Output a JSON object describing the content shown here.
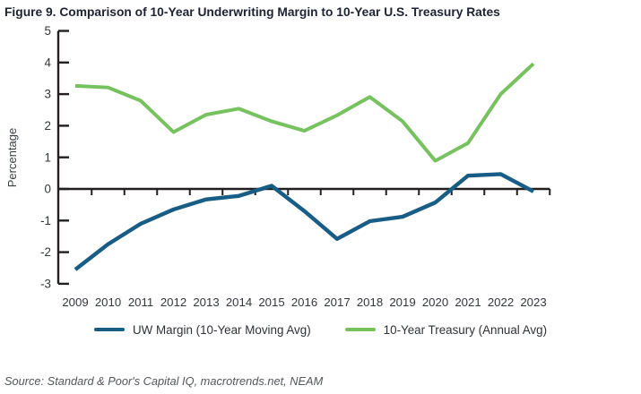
{
  "header": {},
  "chart_data": {
    "type": "line",
    "title": "Figure 9. Comparison of 10-Year Underwriting Margin to 10-Year U.S. Treasury Rates",
    "xlabel": "",
    "ylabel": "Percentage",
    "ylim": [
      -3,
      5
    ],
    "ytick_interval": 1,
    "grid": false,
    "legend_position": "bottom",
    "axis_style": "y-axis left with inward ticks, single horizontal axis at zero with short downward ticks between years",
    "categories": [
      "2009",
      "2010",
      "2011",
      "2012",
      "2013",
      "2014",
      "2015",
      "2016",
      "2017",
      "2018",
      "2019",
      "2020",
      "2021",
      "2022",
      "2023"
    ],
    "series": [
      {
        "name": "UW Margin (10-Year Moving Avg)",
        "color": "#175d85",
        "values": [
          -2.55,
          -1.75,
          -1.1,
          -0.65,
          -0.33,
          -0.22,
          0.1,
          -0.7,
          -1.58,
          -1.02,
          -0.88,
          -0.43,
          0.42,
          0.47,
          -0.08
        ]
      },
      {
        "name": "10-Year Treasury (Annual Avg)",
        "color": "#76c25f",
        "values": [
          3.26,
          3.21,
          2.79,
          1.8,
          2.35,
          2.54,
          2.14,
          1.84,
          2.33,
          2.91,
          2.14,
          0.89,
          1.45,
          3.0,
          3.96
        ]
      }
    ],
    "axis_color": "#231f20",
    "tick_label_color": "#33373d"
  },
  "footer": {
    "source": "Source: Standard & Poor's Capital IQ, macrotrends.net, NEAM"
  }
}
